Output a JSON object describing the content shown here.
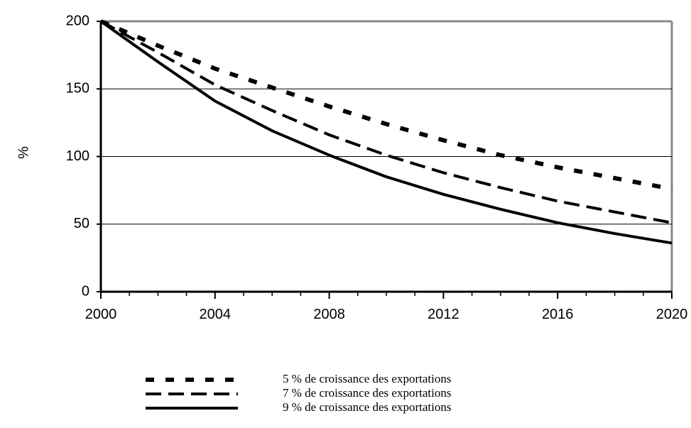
{
  "chart_data": {
    "type": "line",
    "ylabel": "%",
    "x": [
      2000,
      2002,
      2004,
      2006,
      2008,
      2010,
      2012,
      2014,
      2016,
      2018,
      2020
    ],
    "series": [
      {
        "name": "5 % de croissance des exportations",
        "color": "#000000",
        "dash": "dotted",
        "values": [
          200,
          182,
          165,
          151,
          137,
          124,
          112,
          101,
          92,
          84,
          76
        ]
      },
      {
        "name": "7 % de croissance des exportations",
        "color": "#000000",
        "dash": "dashed",
        "values": [
          200,
          177,
          153,
          134,
          116,
          101,
          88,
          77,
          67,
          59,
          51
        ]
      },
      {
        "name": "9 % de croissance des exportations",
        "color": "#000000",
        "dash": "solid",
        "values": [
          200,
          170,
          141,
          119,
          101,
          85,
          72,
          61,
          51,
          43,
          36
        ]
      }
    ],
    "xlim": [
      2000,
      2020
    ],
    "xticks": [
      2000,
      2004,
      2008,
      2012,
      2016,
      2020
    ],
    "ylim": [
      0,
      200
    ],
    "yticks": [
      0,
      50,
      100,
      150,
      200
    ],
    "grid": true,
    "legend": "bottom"
  }
}
